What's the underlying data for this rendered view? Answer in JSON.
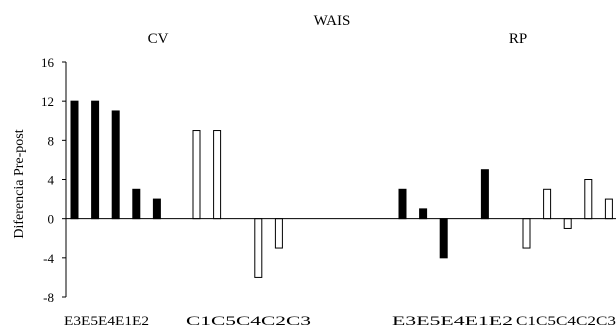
{
  "chart_data": {
    "type": "bar",
    "title": "WAIS",
    "ylabel": "Diferencia  Pre-post",
    "ylim": [
      -8,
      16
    ],
    "yticks": [
      16,
      12,
      8,
      4,
      0,
      -4,
      -8
    ],
    "grid": false,
    "legend": "none",
    "colors": {
      "experimental": "#000000",
      "control": "#ffffff",
      "stroke": "#000000"
    },
    "panels": [
      {
        "name": "CV",
        "groups": [
          {
            "name": "experimental",
            "categories": [
              "E3",
              "E5",
              "E4",
              "E1",
              "E2"
            ],
            "values": [
              12,
              12,
              11,
              3,
              2
            ]
          },
          {
            "name": "control",
            "categories": [
              "C1",
              "C5",
              "C4",
              "C2",
              "C3"
            ],
            "values": [
              9,
              9,
              0,
              -6,
              -3
            ]
          }
        ]
      },
      {
        "name": "RP",
        "groups": [
          {
            "name": "experimental",
            "categories": [
              "E3",
              "E5",
              "E4",
              "E1",
              "E2"
            ],
            "values": [
              3,
              1,
              -4,
              0,
              5
            ]
          },
          {
            "name": "control",
            "categories": [
              "C1",
              "C5",
              "C4",
              "C2",
              "C3"
            ],
            "values": [
              -3,
              3,
              -1,
              4,
              2
            ]
          }
        ]
      }
    ]
  }
}
